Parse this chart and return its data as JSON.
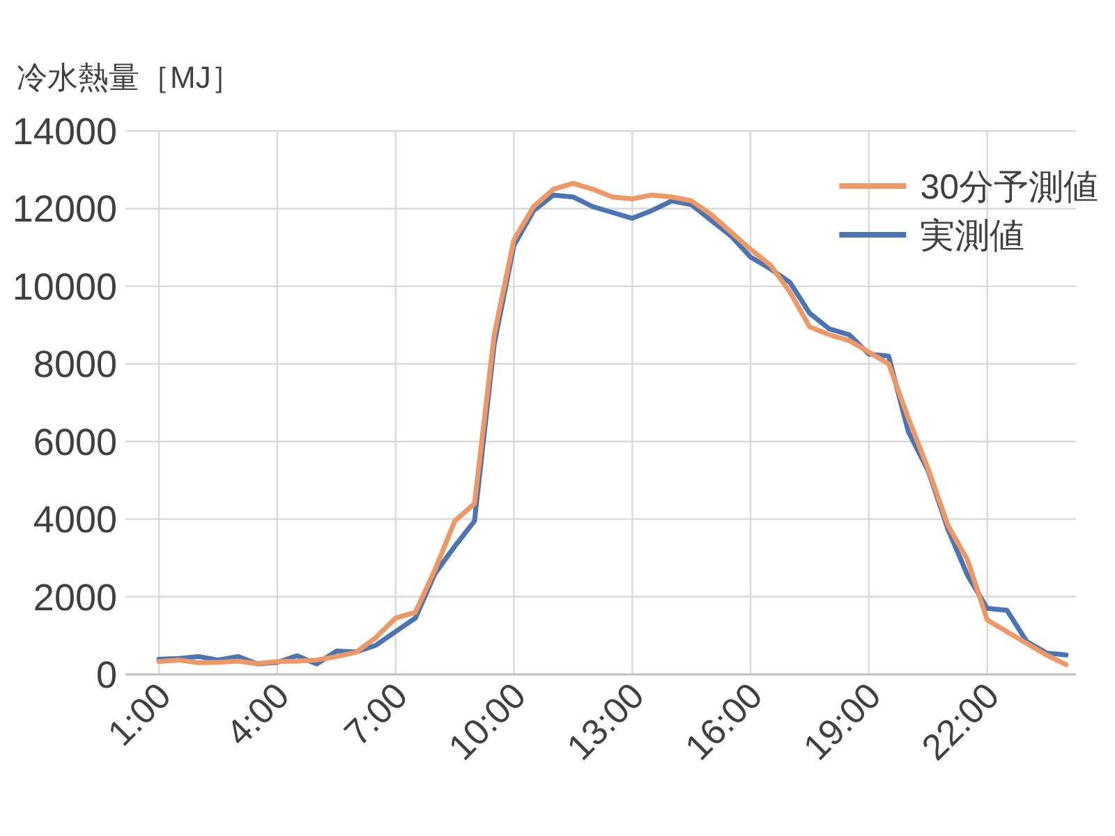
{
  "chart_data": {
    "type": "line",
    "ylabel": "冷水熱量［MJ］",
    "x": [
      1,
      1.5,
      2,
      2.5,
      3,
      3.5,
      4,
      4.5,
      5,
      5.5,
      6,
      6.5,
      7,
      7.5,
      8,
      8.5,
      9,
      9.5,
      10,
      10.5,
      11,
      11.5,
      12,
      12.5,
      13,
      13.5,
      14,
      14.5,
      15,
      15.5,
      16,
      16.5,
      17,
      17.5,
      18,
      18.5,
      19,
      19.5,
      20,
      20.5,
      21,
      21.5,
      22,
      22.5,
      23,
      23.5,
      24
    ],
    "series": [
      {
        "name": "30分予測値",
        "color": "#ed9865",
        "values": [
          330,
          370,
          300,
          310,
          340,
          280,
          330,
          340,
          370,
          460,
          570,
          950,
          1450,
          1600,
          2700,
          3950,
          4400,
          8750,
          11200,
          12050,
          12500,
          12650,
          12500,
          12300,
          12250,
          12350,
          12300,
          12200,
          11850,
          11400,
          10950,
          10550,
          9850,
          8950,
          8750,
          8600,
          8300,
          8000,
          6600,
          5300,
          3850,
          2950,
          1400,
          1100,
          800,
          500,
          250
        ]
      },
      {
        "name": "実測値",
        "color": "#4b74b3",
        "values": [
          390,
          410,
          460,
          370,
          460,
          270,
          310,
          480,
          270,
          600,
          580,
          750,
          1100,
          1450,
          2600,
          3300,
          3950,
          8500,
          11050,
          11950,
          12350,
          12300,
          12050,
          11900,
          11750,
          11950,
          12200,
          12100,
          11700,
          11300,
          10750,
          10450,
          10100,
          9300,
          8900,
          8750,
          8250,
          8200,
          6250,
          5250,
          3750,
          2550,
          1700,
          1650,
          850,
          550,
          500
        ]
      }
    ],
    "xlim": [
      0.15,
      24.25
    ],
    "ylim": [
      0,
      14000
    ],
    "xticks": [
      {
        "value": 1,
        "label": "1:00"
      },
      {
        "value": 4,
        "label": "4:00"
      },
      {
        "value": 7,
        "label": "7:00"
      },
      {
        "value": 10,
        "label": "10:00"
      },
      {
        "value": 13,
        "label": "13:00"
      },
      {
        "value": 16,
        "label": "16:00"
      },
      {
        "value": 19,
        "label": "19:00"
      },
      {
        "value": 22,
        "label": "22:00"
      }
    ],
    "yticks": [
      0,
      2000,
      4000,
      6000,
      8000,
      10000,
      12000,
      14000
    ],
    "grid": true,
    "legend": "top right"
  }
}
